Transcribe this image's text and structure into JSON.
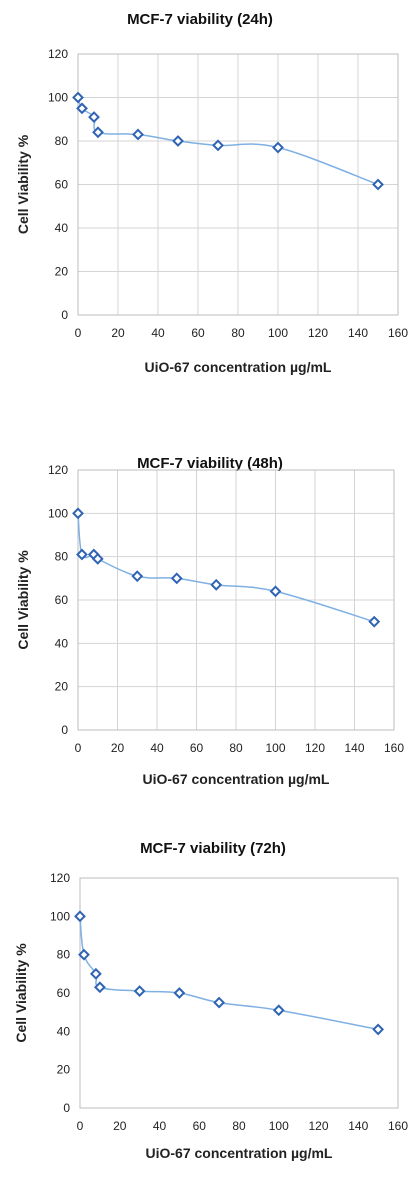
{
  "chart_data": [
    {
      "type": "scatter",
      "title": "MCF-7 viability (24h)",
      "xlabel": "UiO-67 concentration µg/mL",
      "ylabel": "Cell Viability %",
      "xlim": [
        0,
        160
      ],
      "ylim": [
        0,
        120
      ],
      "xticks": [
        "0",
        "20",
        "40",
        "60",
        "80",
        "100",
        "120",
        "140",
        "160"
      ],
      "yticks": [
        "0",
        "20",
        "40",
        "60",
        "80",
        "100",
        "120"
      ],
      "grid": true,
      "line": "smoothed",
      "series": [
        {
          "x": [
            0,
            2,
            8,
            10,
            30,
            50,
            70,
            100,
            150
          ],
          "y": [
            100,
            95,
            91,
            84,
            83,
            80,
            78,
            77,
            60
          ]
        }
      ]
    },
    {
      "type": "scatter",
      "title": "MCF-7 viability (48h)",
      "xlabel": "UiO-67 concentration µg/mL",
      "ylabel": "Cell Viability %",
      "xlim": [
        0,
        160
      ],
      "ylim": [
        0,
        120
      ],
      "xticks": [
        "0",
        "20",
        "40",
        "60",
        "80",
        "100",
        "120",
        "140",
        "160"
      ],
      "yticks": [
        "0",
        "20",
        "40",
        "60",
        "80",
        "100",
        "120"
      ],
      "grid": true,
      "line": "smoothed",
      "series": [
        {
          "x": [
            0,
            2,
            8,
            10,
            30,
            50,
            70,
            100,
            150
          ],
          "y": [
            100,
            81,
            81,
            79,
            71,
            70,
            67,
            64,
            50
          ]
        }
      ]
    },
    {
      "type": "scatter",
      "title": "MCF-7 viability (72h)",
      "xlabel": "UiO-67 concentration µg/mL",
      "ylabel": "Cell Viability %",
      "xlim": [
        0,
        160
      ],
      "ylim": [
        0,
        120
      ],
      "xticks": [
        "0",
        "20",
        "40",
        "60",
        "80",
        "100",
        "120",
        "140",
        "160"
      ],
      "yticks": [
        "0",
        "20",
        "40",
        "60",
        "80",
        "100",
        "120"
      ],
      "grid": false,
      "line": "smoothed",
      "series": [
        {
          "x": [
            0,
            2,
            8,
            10,
            30,
            50,
            70,
            100,
            150
          ],
          "y": [
            100,
            80,
            70,
            63,
            61,
            60,
            55,
            51,
            41
          ]
        }
      ]
    }
  ],
  "colors": {
    "line": "#7fb0e3",
    "marker": "#2f63b3"
  }
}
